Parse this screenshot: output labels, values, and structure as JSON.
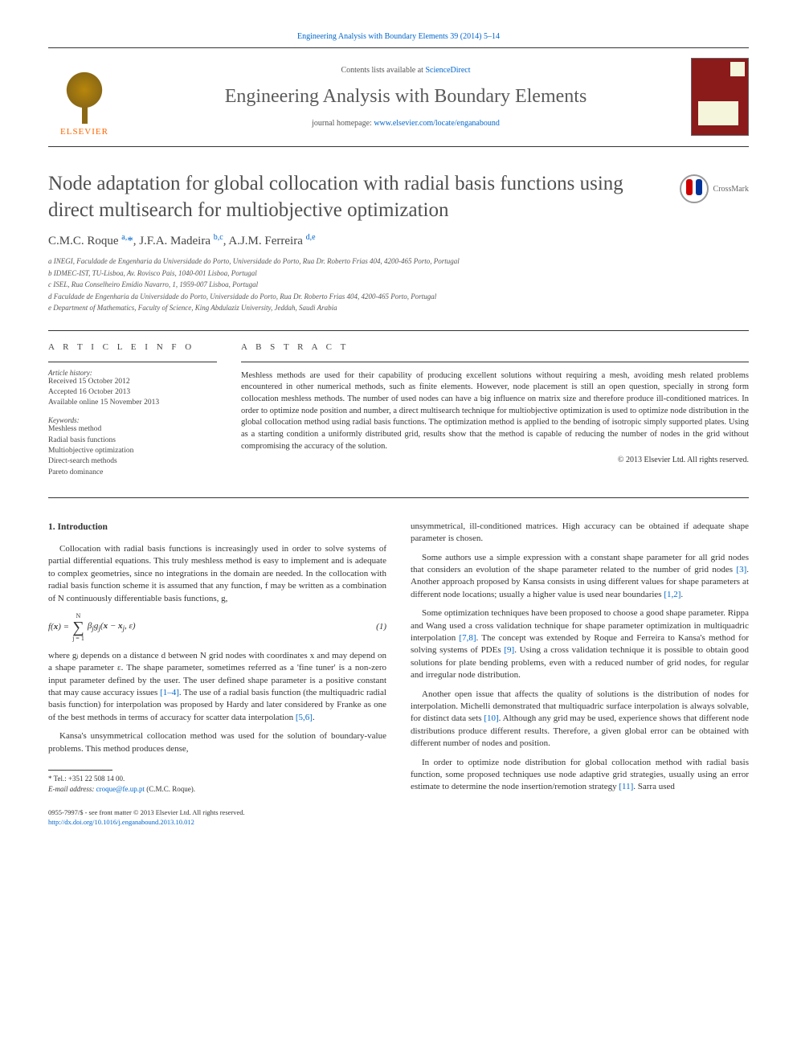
{
  "top_citation": "Engineering Analysis with Boundary Elements 39 (2014) 5–14",
  "header": {
    "contents_prefix": "Contents lists available at ",
    "contents_link": "ScienceDirect",
    "journal": "Engineering Analysis with Boundary Elements",
    "homepage_prefix": "journal homepage: ",
    "homepage_link": "www.elsevier.com/locate/enganabound",
    "publisher": "ELSEVIER"
  },
  "crossmark": "CrossMark",
  "title": "Node adaptation for global collocation with radial basis functions using direct multisearch for multiobjective optimization",
  "authors_html": "C.M.C. Roque <sup>a,</sup><span class='corr-star'>*</span>, J.F.A. Madeira <sup>b,c</sup>, A.J.M. Ferreira <sup>d,e</sup>",
  "affiliations": [
    "a INEGI, Faculdade de Engenharia da Universidade do Porto, Universidade do Porto, Rua Dr. Roberto Frias 404, 4200-465 Porto, Portugal",
    "b IDMEC-IST, TU-Lisboa, Av. Rovisco Pais, 1040-001 Lisboa, Portugal",
    "c ISEL, Rua Conselheiro Emídio Navarro, 1, 1959-007 Lisboa, Portugal",
    "d Faculdade de Engenharia da Universidade do Porto, Universidade do Porto, Rua Dr. Roberto Frias 404, 4200-465 Porto, Portugal",
    "e Department of Mathematics, Faculty of Science, King Abdulaziz University, Jeddah, Saudi Arabia"
  ],
  "info_label": "A R T I C L E  I N F O",
  "abstract_label": "A B S T R A C T",
  "history": {
    "label": "Article history:",
    "received": "Received 15 October 2012",
    "accepted": "Accepted 16 October 2013",
    "online": "Available online 15 November 2013"
  },
  "keywords_label": "Keywords:",
  "keywords": [
    "Meshless method",
    "Radial basis functions",
    "Multiobjective optimization",
    "Direct-search methods",
    "Pareto dominance"
  ],
  "abstract": "Meshless methods are used for their capability of producing excellent solutions without requiring a mesh, avoiding mesh related problems encountered in other numerical methods, such as finite elements. However, node placement is still an open question, specially in strong form collocation meshless methods. The number of used nodes can have a big influence on matrix size and therefore produce ill-conditioned matrices. In order to optimize node position and number, a direct multisearch technique for multiobjective optimization is used to optimize node distribution in the global collocation method using radial basis functions. The optimization method is applied to the bending of isotropic simply supported plates. Using as a starting condition a uniformly distributed grid, results show that the method is capable of reducing the number of nodes in the grid without compromising the accuracy of the solution.",
  "copyright": "© 2013 Elsevier Ltd. All rights reserved.",
  "body": {
    "heading1": "1.  Introduction",
    "l_p1": "Collocation with radial basis functions is increasingly used in order to solve systems of partial differential equations. This truly meshless method is easy to implement and is adequate to complex geometries, since no integrations in the domain are needed. In the collocation with radial basis function scheme it is assumed that any function, f may be written as a combination of N continuously differentiable basis functions, g,",
    "eq_num": "(1)",
    "l_p2_a": "where gⱼ depends on a distance d between N grid nodes with coordinates x and may depend on a shape parameter ε. The shape parameter, sometimes referred as a 'fine tuner' is a non-zero input parameter defined by the user. The user defined shape parameter is a positive constant that may cause accuracy issues ",
    "l_p2_ref1": "[1–4]",
    "l_p2_b": ". The use of a radial basis function (the multiquadric radial basis function) for interpolation was proposed by Hardy and later considered by Franke as one of the best methods in terms of accuracy for scatter data interpolation ",
    "l_p2_ref2": "[5,6]",
    "l_p2_c": ".",
    "l_p3": "Kansa's unsymmetrical collocation method was used for the solution of boundary-value problems. This method produces dense,",
    "r_p1": "unsymmetrical, ill-conditioned matrices. High accuracy can be obtained if adequate shape parameter is chosen.",
    "r_p2_a": "Some authors use a simple expression with a constant shape parameter for all grid nodes that considers an evolution of the shape parameter related to the number of grid nodes ",
    "r_p2_ref1": "[3]",
    "r_p2_b": ". Another approach proposed by Kansa consists in using different values for shape parameters at different node locations; usually a higher value is used near boundaries ",
    "r_p2_ref2": "[1,2]",
    "r_p2_c": ".",
    "r_p3_a": "Some optimization techniques have been proposed to choose a good shape parameter. Rippa and Wang used a cross validation technique for shape parameter optimization in multiquadric interpolation ",
    "r_p3_ref1": "[7,8]",
    "r_p3_b": ". The concept was extended by Roque and Ferreira to Kansa's method for solving systems of PDEs ",
    "r_p3_ref2": "[9]",
    "r_p3_c": ". Using a cross validation technique it is possible to obtain good solutions for plate bending problems, even with a reduced number of grid nodes, for regular and irregular node distribution.",
    "r_p4_a": "Another open issue that affects the quality of solutions is the distribution of nodes for interpolation. Michelli demonstrated that multiquadric surface interpolation is always solvable, for distinct data sets ",
    "r_p4_ref1": "[10]",
    "r_p4_b": ". Although any grid may be used, experience shows that different node distributions produce different results. Therefore, a given global error can be obtained with different number of nodes and position.",
    "r_p5_a": "In order to optimize node distribution for global collocation method with radial basis function, some proposed techniques use node adaptive grid strategies, usually using an error estimate to determine the node insertion/remotion strategy ",
    "r_p5_ref1": "[11]",
    "r_p5_b": ". Sarra used"
  },
  "footnotes": {
    "tel": "* Tel.: +351 22 508 14 00.",
    "email_label": "E-mail address: ",
    "email": "croque@fe.up.pt",
    "email_tail": " (C.M.C. Roque)."
  },
  "footer": {
    "line1": "0955-7997/$ - see front matter © 2013 Elsevier Ltd. All rights reserved.",
    "doi": "http://dx.doi.org/10.1016/j.enganabound.2013.10.012"
  }
}
